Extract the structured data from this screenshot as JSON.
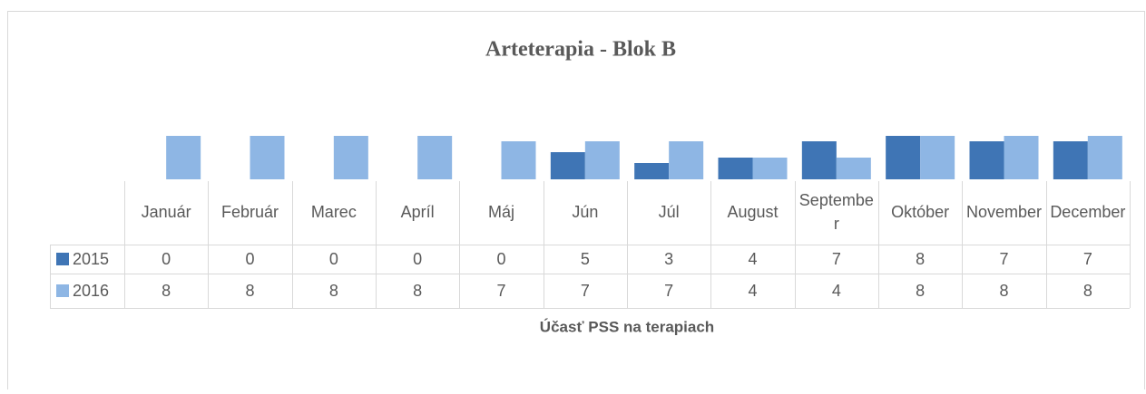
{
  "chart_data": {
    "type": "bar",
    "title": "Arteterapia - Blok B",
    "x_label": "Účasť PSS  na  terapiach",
    "categories": [
      "Január",
      "Február",
      "Marec",
      "Apríl",
      "Máj",
      "Jún",
      "Júl",
      "August",
      "September",
      "Október",
      "November",
      "December"
    ],
    "series": [
      {
        "name": "2015",
        "color": "#3f75b5",
        "values": [
          0,
          0,
          0,
          0,
          0,
          5,
          3,
          4,
          7,
          8,
          7,
          7
        ]
      },
      {
        "name": "2016",
        "color": "#8eb6e4",
        "values": [
          8,
          8,
          8,
          8,
          7,
          7,
          7,
          4,
          4,
          8,
          8,
          8
        ]
      }
    ],
    "ylim": [
      0,
      8
    ]
  }
}
